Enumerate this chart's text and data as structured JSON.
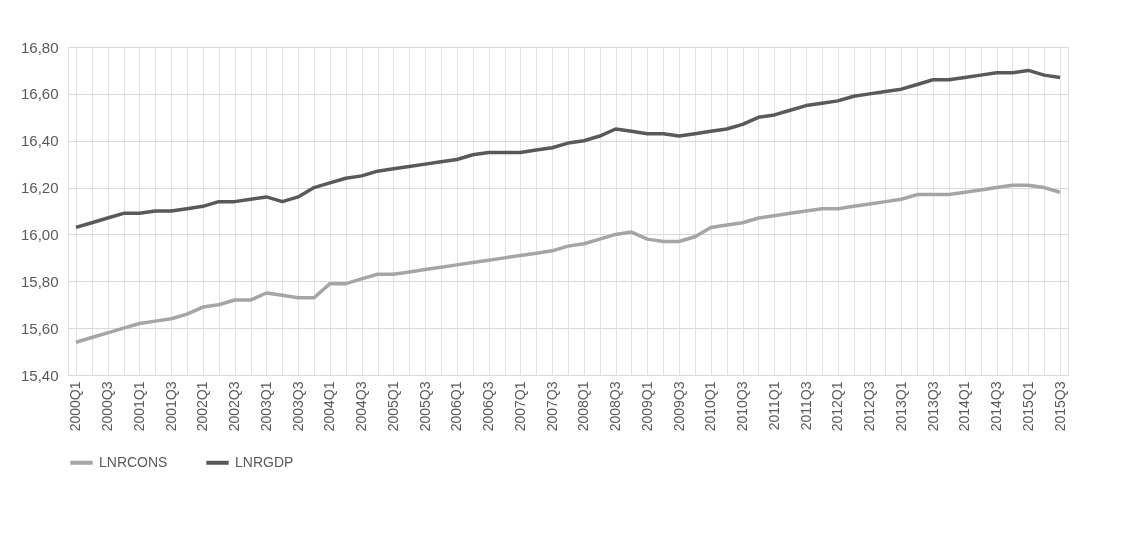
{
  "chart_data": {
    "type": "line",
    "categories": [
      "2000Q1",
      null,
      "2000Q3",
      null,
      "2001Q1",
      null,
      "2001Q3",
      null,
      "2002Q1",
      null,
      "2002Q3",
      null,
      "2003Q1",
      null,
      "2003Q3",
      null,
      "2004Q1",
      null,
      "2004Q3",
      null,
      "2005Q1",
      null,
      "2005Q3",
      null,
      "2006Q1",
      null,
      "2006Q3",
      null,
      "2007Q1",
      null,
      "2007Q3",
      null,
      "2008Q1",
      null,
      "2008Q3",
      null,
      "2009Q1",
      null,
      "2009Q3",
      null,
      "2010Q1",
      null,
      "2010Q3",
      null,
      "2011Q1",
      null,
      "2011Q3",
      null,
      "2012Q1",
      null,
      "2012Q3",
      null,
      "2013Q1",
      null,
      "2013Q3",
      null,
      "2014Q1",
      null,
      "2014Q3",
      null,
      "2015Q1",
      null,
      "2015Q3"
    ],
    "series": [
      {
        "name": "LNRCONS",
        "color": "#a5a5a5",
        "values": [
          15.54,
          15.56,
          15.58,
          15.6,
          15.62,
          15.63,
          15.64,
          15.66,
          15.69,
          15.7,
          15.72,
          15.72,
          15.75,
          15.74,
          15.73,
          15.73,
          15.79,
          15.79,
          15.81,
          15.83,
          15.83,
          15.84,
          15.85,
          15.86,
          15.87,
          15.88,
          15.89,
          15.9,
          15.91,
          15.92,
          15.93,
          15.95,
          15.96,
          15.98,
          16.0,
          16.01,
          15.98,
          15.97,
          15.97,
          15.99,
          16.03,
          16.04,
          16.05,
          16.07,
          16.08,
          16.09,
          16.1,
          16.11,
          16.11,
          16.12,
          16.13,
          16.14,
          16.15,
          16.17,
          16.17,
          16.17,
          16.18,
          16.19,
          16.2,
          16.21,
          16.21,
          16.2,
          16.18
        ]
      },
      {
        "name": "LNRGDP",
        "color": "#595959",
        "values": [
          16.03,
          16.05,
          16.07,
          16.09,
          16.09,
          16.1,
          16.1,
          16.11,
          16.12,
          16.14,
          16.14,
          16.15,
          16.16,
          16.14,
          16.16,
          16.2,
          16.22,
          16.24,
          16.25,
          16.27,
          16.28,
          16.29,
          16.3,
          16.31,
          16.32,
          16.34,
          16.35,
          16.35,
          16.35,
          16.36,
          16.37,
          16.39,
          16.4,
          16.42,
          16.45,
          16.44,
          16.43,
          16.43,
          16.42,
          16.43,
          16.44,
          16.45,
          16.47,
          16.5,
          16.51,
          16.53,
          16.55,
          16.56,
          16.57,
          16.59,
          16.6,
          16.61,
          16.62,
          16.64,
          16.66,
          16.66,
          16.67,
          16.68,
          16.69,
          16.69,
          16.7,
          16.68,
          16.67
        ]
      }
    ],
    "ylim": [
      15.4,
      16.8
    ],
    "yticks": [
      {
        "value": 15.4,
        "label": "15,40"
      },
      {
        "value": 15.6,
        "label": "15,60"
      },
      {
        "value": 15.8,
        "label": "15,80"
      },
      {
        "value": 16.0,
        "label": "16,00"
      },
      {
        "value": 16.2,
        "label": "16,20"
      },
      {
        "value": 16.4,
        "label": "16,40"
      },
      {
        "value": 16.6,
        "label": "16,60"
      },
      {
        "value": 16.8,
        "label": "16,80"
      }
    ],
    "grid": true,
    "legend": "bottom",
    "marker": "none",
    "line_style": "solid"
  }
}
